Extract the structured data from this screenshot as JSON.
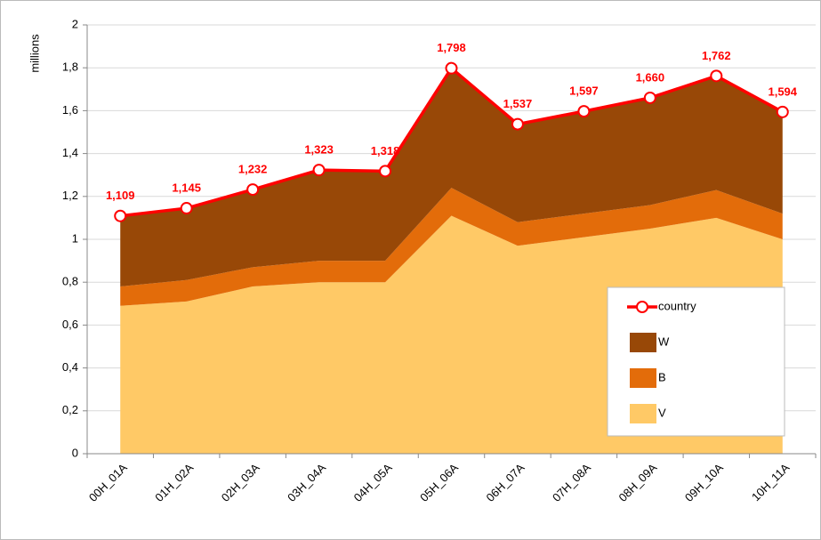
{
  "chart_data": {
    "type": "stacked_area_line",
    "y_label": "millions",
    "categories": [
      "00H_01A",
      "01H_02A",
      "02H_03A",
      "03H_04A",
      "04H_05A",
      "05H_06A",
      "06H_07A",
      "07H_08A",
      "08H_09A",
      "09H_10A",
      "10H_11A"
    ],
    "series": [
      {
        "name": "V",
        "color": "#FFC966",
        "kind": "area",
        "values": [
          0.69,
          0.71,
          0.78,
          0.8,
          0.8,
          1.11,
          0.97,
          1.01,
          1.05,
          1.1,
          1.0
        ]
      },
      {
        "name": "B",
        "color": "#E36C0A",
        "kind": "area",
        "values": [
          0.09,
          0.1,
          0.09,
          0.1,
          0.1,
          0.13,
          0.11,
          0.11,
          0.11,
          0.13,
          0.12
        ]
      },
      {
        "name": "W",
        "color": "#984807",
        "kind": "area",
        "values": [
          0.33,
          0.34,
          0.36,
          0.42,
          0.42,
          0.56,
          0.46,
          0.48,
          0.5,
          0.53,
          0.47
        ]
      },
      {
        "name": "country",
        "color": "#FF0000",
        "kind": "line",
        "values": [
          1.109,
          1.145,
          1.232,
          1.323,
          1.318,
          1.798,
          1.537,
          1.597,
          1.66,
          1.762,
          1.594
        ],
        "value_labels": [
          "1,109",
          "1,145",
          "1,232",
          "1,323",
          "1,318",
          "1,798",
          "1,537",
          "1,597",
          "1,660",
          "1,762",
          "1,594"
        ]
      }
    ],
    "ylim": [
      0,
      2
    ],
    "yticks": [
      0,
      {
        "value": 0.2,
        "label": "0,2"
      },
      {
        "value": 0.4,
        "label": "0,4"
      },
      {
        "value": 0.6,
        "label": "0,6"
      },
      {
        "value": 0.8,
        "label": "0,8"
      },
      1,
      {
        "value": 1.2,
        "label": "1,2"
      },
      {
        "value": 1.4,
        "label": "1,4"
      },
      {
        "value": 1.6,
        "label": "1,6"
      },
      {
        "value": 1.8,
        "label": "1,8"
      },
      2
    ],
    "grid": true,
    "legend": "lower right"
  }
}
